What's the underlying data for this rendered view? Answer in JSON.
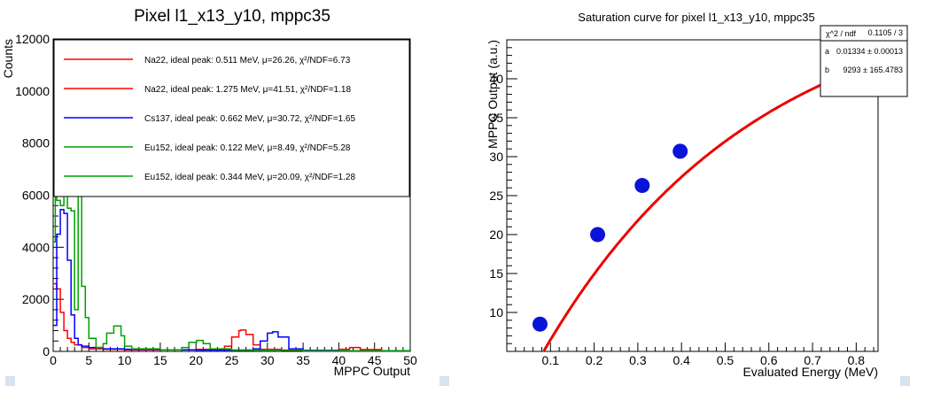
{
  "colors": {
    "red": "#ff0000",
    "blue": "#0000ff",
    "green": "#00a000",
    "fit": "#ee0000",
    "point": "#0a14d8",
    "corner": "#d6e3f0"
  },
  "chart_data": [
    {
      "type": "line",
      "title": "Pixel l1_x13_y10, mppc35",
      "xlabel": "MPPC Output",
      "ylabel": "Counts",
      "xlim": [
        0,
        50
      ],
      "ylim": [
        0,
        12000
      ],
      "xticks": [
        "0",
        "5",
        "10",
        "15",
        "20",
        "25",
        "30",
        "35",
        "40",
        "45",
        "50"
      ],
      "yticks": [
        "0",
        "2000",
        "4000",
        "6000",
        "8000",
        "10000",
        "12000"
      ],
      "legend_position": "top",
      "legend": [
        {
          "label": "Na22, ideal peak: 0.511 MeV, μ=26.26, χ²/NDF=6.73",
          "color": "red"
        },
        {
          "label": "Na22, ideal peak: 1.275 MeV, μ=41.51, χ²/NDF=1.18",
          "color": "red"
        },
        {
          "label": "Cs137, ideal peak: 0.662 MeV, μ=30.72, χ²/NDF=1.65",
          "color": "blue"
        },
        {
          "label": "Eu152, ideal peak: 0.122 MeV, μ=8.49, χ²/NDF=5.28",
          "color": "green"
        },
        {
          "label": "Eu152, ideal peak: 0.344 MeV, μ=20.09, χ²/NDF=1.28",
          "color": "green"
        }
      ],
      "series": [
        {
          "color": "red",
          "x": [
            0,
            0.5,
            1,
            1.5,
            2,
            2.5,
            3,
            4,
            5,
            7,
            10,
            15,
            20,
            24,
            25,
            26,
            26.26,
            27,
            28,
            29,
            32,
            38,
            40,
            41.51,
            43,
            46,
            50
          ],
          "y": [
            2600,
            2400,
            1500,
            800,
            500,
            350,
            250,
            150,
            100,
            80,
            60,
            60,
            80,
            200,
            550,
            800,
            820,
            650,
            250,
            80,
            40,
            40,
            80,
            150,
            70,
            20,
            10
          ]
        },
        {
          "color": "blue",
          "x": [
            0,
            0.5,
            1,
            1.5,
            2,
            2.5,
            3,
            3.5,
            4,
            5,
            7,
            10,
            15,
            20,
            26,
            28,
            29,
            30,
            30.72,
            31.5,
            33,
            35,
            40,
            50
          ],
          "y": [
            1000,
            4500,
            5450,
            5300,
            3500,
            1400,
            500,
            250,
            200,
            150,
            100,
            80,
            60,
            50,
            50,
            100,
            400,
            700,
            750,
            550,
            100,
            40,
            20,
            10
          ]
        },
        {
          "color": "green",
          "x": [
            0,
            0.3,
            0.5,
            1,
            1.5,
            2,
            2.5,
            3,
            3.5,
            4,
            4.5,
            5,
            6,
            7,
            7.5,
            8.49,
            9.5,
            10,
            11,
            15,
            18,
            19,
            20.09,
            21,
            22,
            25,
            35,
            50
          ],
          "y": [
            4200,
            6000,
            5800,
            5600,
            6000,
            5500,
            5400,
            1600,
            6000,
            2500,
            1300,
            500,
            150,
            300,
            700,
            980,
            600,
            200,
            100,
            60,
            150,
            350,
            420,
            300,
            100,
            50,
            20,
            10
          ]
        }
      ]
    },
    {
      "type": "scatter",
      "title": "Saturation curve for pixel l1_x13_y10, mppc35",
      "xlabel": "Evaluated Energy (MeV)",
      "ylabel": "MPPC Output (a.u.)",
      "xlim": [
        0,
        0.85
      ],
      "ylim": [
        5,
        45
      ],
      "xticks": [
        "0.1",
        "0.2",
        "0.3",
        "0.4",
        "0.5",
        "0.6",
        "0.7",
        "0.8"
      ],
      "yticks": [
        "10",
        "15",
        "20",
        "25",
        "30",
        "35",
        "40"
      ],
      "points": [
        {
          "x": 0.076,
          "y": 8.5
        },
        {
          "x": 0.208,
          "y": 20.0
        },
        {
          "x": 0.31,
          "y": 26.3
        },
        {
          "x": 0.397,
          "y": 30.7
        },
        {
          "x": 0.775,
          "y": 41.5
        }
      ],
      "fit": {
        "a": 0.01334,
        "b": 9293
      },
      "stats": {
        "title_label": "χ^2 / ndf",
        "title_value": "0.1105 / 3",
        "a_label": "a",
        "a_value": "0.01334 ± 0.00013",
        "b_label": "b",
        "b_value": "9293 ± 165.4783"
      }
    }
  ]
}
